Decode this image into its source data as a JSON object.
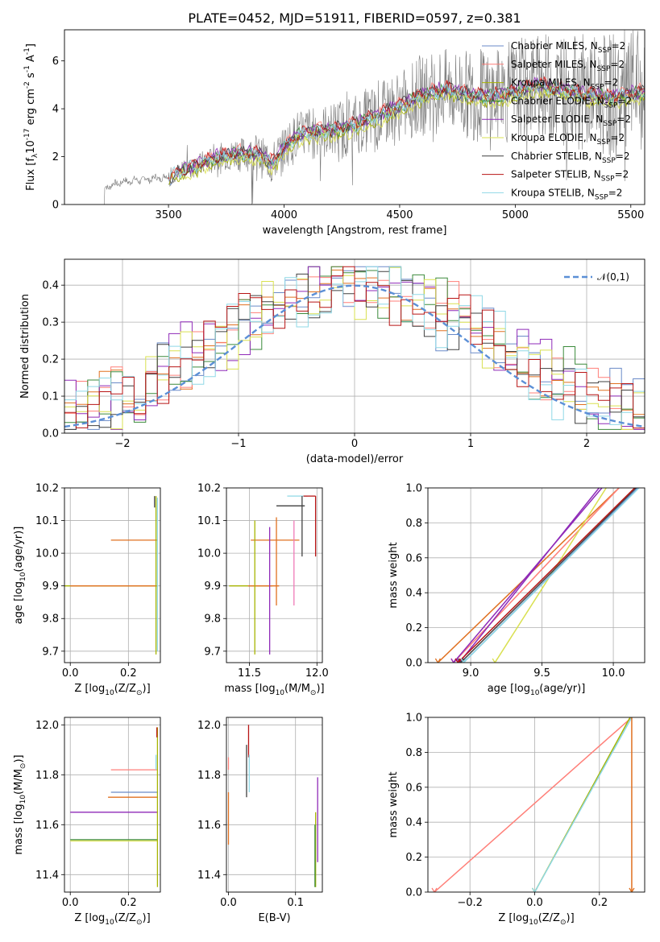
{
  "figure_title": "PLATE=0452, MJD=51911, FIBERID=0597, z=0.381",
  "colors": {
    "Chabrier MILES": "#6a8ac8",
    "Salpeter MILES": "#ff7f78",
    "Kroupa MILES": "#a7b400",
    "Chabrier ELODIE": "#3b8a3b",
    "Salpeter ELODIE": "#8f2ab8",
    "Kroupa ELODIE": "#d9e050",
    "Chabrier STELIB": "#404040",
    "Salpeter STELIB": "#b81414",
    "Kroupa STELIB": "#8fd8e6",
    "gaussian": "#5b8fd6",
    "orange": "#e07020",
    "pink": "#f07ab8",
    "purple": "#8f2ab8"
  },
  "chart_data": [
    {
      "id": "spectrum",
      "type": "line",
      "title": "PLATE=0452, MJD=51911, FIBERID=0597, z=0.381",
      "xlabel": "wavelength [Angstrom, rest frame]",
      "ylabel": "Flux [f$_\\lambda$10$^{-17}$ erg cm$^{-2}$ s$^{-1}$ A$^{-1}$]",
      "xlim": [
        3050,
        5560
      ],
      "ylim": [
        0,
        7.3
      ],
      "xticks": [
        3500,
        4000,
        4500,
        5000,
        5500
      ],
      "yticks": [
        0,
        2,
        4,
        6
      ],
      "legend_position": "top-right",
      "legend": [
        "Chabrier MILES, N$_{SSP}$=2",
        "Salpeter MILES, N$_{SSP}$=2",
        "Kroupa MILES, N$_{SSP}$=2",
        "Chabrier ELODIE, N$_{SSP}$=2",
        "Salpeter ELODIE, N$_{SSP}$=2",
        "Kroupa ELODIE, N$_{SSP}$=2",
        "Chabrier STELIB, N$_{SSP}$=2",
        "Salpeter STELIB, N$_{SSP}$=2",
        "Kroupa STELIB, N$_{SSP}$=2"
      ],
      "continuum": {
        "x": [
          3220,
          3300,
          3400,
          3500,
          3600,
          3700,
          3800,
          3900,
          3950,
          4000,
          4050,
          4100,
          4200,
          4300,
          4400,
          4500,
          4600,
          4700,
          4800,
          4900,
          5000,
          5100,
          5200,
          5300,
          5400,
          5500,
          5560
        ],
        "y": [
          0.7,
          0.95,
          1.05,
          1.15,
          1.55,
          1.95,
          2.15,
          2.05,
          1.7,
          2.35,
          2.85,
          3.0,
          3.1,
          3.3,
          3.7,
          4.1,
          4.6,
          4.8,
          4.6,
          4.5,
          4.7,
          5.0,
          4.8,
          4.6,
          4.5,
          4.6,
          4.7
        ]
      },
      "data_range": [
        3220,
        5560
      ],
      "noise_start": 3500
    },
    {
      "id": "residuals",
      "type": "histogram",
      "xlabel": "(data-model)/error",
      "ylabel": "Normed distribution",
      "xlim": [
        -2.5,
        2.5
      ],
      "ylim": [
        0,
        0.47
      ],
      "xticks": [
        -2,
        -1,
        0,
        1,
        2
      ],
      "yticks": [
        0.0,
        0.1,
        0.2,
        0.3,
        0.4
      ],
      "legend_position": "top-right",
      "legend": "$\\mathcal{N}(0,1)$",
      "bin_width": 0.1
    },
    {
      "id": "age-vs-Z",
      "type": "scatter",
      "xlabel": "Z [log$_{10}$(Z/Z$_\\odot$)]",
      "ylabel": "age  [log$_{10}$(age/yr)]",
      "xlim": [
        -0.02,
        0.31
      ],
      "ylim": [
        9.665,
        10.2
      ],
      "xticks": [
        0.0,
        0.2
      ],
      "yticks": [
        9.7,
        9.8,
        9.9,
        10.0,
        10.1,
        10.2
      ],
      "hbars": [
        {
          "y": 10.04,
          "x0": 0.14,
          "x1": 0.3,
          "color": "orange"
        },
        {
          "y": 9.9,
          "x0": -0.02,
          "x1": 0.3,
          "color": "Kroupa MILES"
        },
        {
          "y": 9.9,
          "x0": 0.0,
          "x1": 0.3,
          "color": "orange"
        }
      ],
      "vbars": [
        {
          "x": 0.295,
          "y0": 9.69,
          "y1": 10.175,
          "color": "Kroupa MILES"
        },
        {
          "x": 0.3,
          "y0": 9.7,
          "y1": 10.17,
          "color": "Kroupa STELIB"
        },
        {
          "x": 0.29,
          "y0": 10.14,
          "y1": 10.175,
          "color": "Chabrier STELIB"
        }
      ]
    },
    {
      "id": "age-vs-mass",
      "type": "scatter",
      "xlabel": "mass [log$_{10}$(M/M$_\\odot$)]",
      "xlim": [
        11.33,
        12.04
      ],
      "ylim": [
        9.665,
        10.2
      ],
      "xticks": [
        11.5,
        12.0
      ],
      "yticks": [
        9.7,
        9.8,
        9.9,
        10.0,
        10.1,
        10.2
      ],
      "hbars": [
        {
          "y": 10.175,
          "x0": 11.78,
          "x1": 11.93,
          "color": "Kroupa STELIB"
        },
        {
          "y": 10.175,
          "x0": 11.9,
          "x1": 11.99,
          "color": "Salpeter STELIB"
        },
        {
          "y": 10.145,
          "x0": 11.7,
          "x1": 11.91,
          "color": "Chabrier STELIB"
        },
        {
          "y": 10.04,
          "x0": 11.51,
          "x1": 11.87,
          "color": "orange"
        },
        {
          "y": 9.9,
          "x0": 11.35,
          "x1": 11.67,
          "color": "Kroupa MILES"
        },
        {
          "y": 9.9,
          "x0": 11.49,
          "x1": 11.72,
          "color": "orange"
        }
      ],
      "vbars": [
        {
          "x": 11.54,
          "y0": 9.69,
          "y1": 10.1,
          "color": "Kroupa MILES"
        },
        {
          "x": 11.65,
          "y0": 9.69,
          "y1": 10.08,
          "color": "purple"
        },
        {
          "x": 11.7,
          "y0": 9.84,
          "y1": 10.11,
          "color": "orange"
        },
        {
          "x": 11.83,
          "y0": 9.84,
          "y1": 10.1,
          "color": "pink"
        },
        {
          "x": 11.89,
          "y0": 9.99,
          "y1": 10.175,
          "color": "Chabrier STELIB"
        },
        {
          "x": 11.99,
          "y0": 9.99,
          "y1": 10.175,
          "color": "Salpeter STELIB"
        }
      ]
    },
    {
      "id": "mass-weight-vs-age",
      "type": "line",
      "xlabel": "age  [log$_{10}$(age/yr)]",
      "ylabel": "mass weight",
      "xlim": [
        8.7,
        10.22
      ],
      "ylim": [
        0,
        1
      ],
      "xticks": [
        9.0,
        9.5,
        10.0
      ],
      "yticks": [
        0.0,
        0.2,
        0.4,
        0.6,
        0.8,
        1.0
      ],
      "series": [
        {
          "color": "orange",
          "x": [
            8.77,
            10.04
          ]
        },
        {
          "color": "Salpeter MILES",
          "x": [
            8.88,
            10.04
          ]
        },
        {
          "color": "purple",
          "x": [
            8.88,
            9.92
          ]
        },
        {
          "color": "Salpeter ELODIE",
          "x": [
            8.92,
            9.9
          ]
        },
        {
          "color": "Kroupa ELODIE",
          "x": [
            9.17,
            9.95
          ]
        },
        {
          "color": "Chabrier STELIB",
          "x": [
            8.93,
            10.16
          ]
        },
        {
          "color": "Salpeter STELIB",
          "x": [
            8.91,
            10.15
          ]
        },
        {
          "color": "Chabrier MILES",
          "x": [
            8.95,
            10.17
          ]
        },
        {
          "color": "Kroupa STELIB",
          "x": [
            8.95,
            10.18
          ]
        }
      ]
    },
    {
      "id": "mass-vs-Z",
      "type": "scatter",
      "xlabel": "Z [log$_{10}$(Z/Z$_\\odot$)]",
      "ylabel": "mass [log$_{10}$(M/M$_\\odot$)]",
      "xlim": [
        -0.02,
        0.31
      ],
      "ylim": [
        11.33,
        12.03
      ],
      "xticks": [
        0.0,
        0.2
      ],
      "yticks": [
        11.4,
        11.6,
        11.8,
        12.0
      ],
      "hbars": [
        {
          "y": 11.82,
          "x0": 0.14,
          "x1": 0.3,
          "color": "Salpeter MILES"
        },
        {
          "y": 11.73,
          "x0": 0.14,
          "x1": 0.3,
          "color": "Chabrier MILES"
        },
        {
          "y": 11.71,
          "x0": 0.13,
          "x1": 0.3,
          "color": "orange"
        },
        {
          "y": 11.65,
          "x0": 0.0,
          "x1": 0.3,
          "color": "purple"
        },
        {
          "y": 11.54,
          "x0": 0.0,
          "x1": 0.3,
          "color": "Chabrier ELODIE"
        },
        {
          "y": 11.535,
          "x0": 0.0,
          "x1": 0.3,
          "color": "Kroupa ELODIE"
        }
      ],
      "vbars": [
        {
          "x": 0.3,
          "y0": 11.35,
          "y1": 11.99,
          "color": "Kroupa MILES"
        },
        {
          "x": 0.295,
          "y0": 11.82,
          "y1": 11.88,
          "color": "Kroupa STELIB"
        },
        {
          "x": 0.298,
          "y0": 11.95,
          "y1": 11.99,
          "color": "Salpeter STELIB"
        }
      ]
    },
    {
      "id": "mass-vs-ebv",
      "type": "scatter",
      "xlabel": "E(B-V)",
      "xlim": [
        -0.003,
        0.14
      ],
      "ylim": [
        11.33,
        12.03
      ],
      "xticks": [
        0.0,
        0.1
      ],
      "yticks": [
        11.4,
        11.6,
        11.8,
        12.0
      ],
      "vbars": [
        {
          "x": 0.0,
          "y0": 11.52,
          "y1": 11.73,
          "color": "orange"
        },
        {
          "x": 0.0,
          "y0": 11.82,
          "y1": 11.87,
          "color": "Salpeter MILES"
        },
        {
          "x": 0.027,
          "y0": 11.71,
          "y1": 11.92,
          "color": "Chabrier STELIB"
        },
        {
          "x": 0.03,
          "y0": 11.87,
          "y1": 12.0,
          "color": "Salpeter STELIB"
        },
        {
          "x": 0.031,
          "y0": 11.73,
          "y1": 11.88,
          "color": "Kroupa STELIB"
        },
        {
          "x": 0.133,
          "y0": 11.45,
          "y1": 11.79,
          "color": "purple"
        },
        {
          "x": 0.13,
          "y0": 11.35,
          "y1": 11.65,
          "color": "Kroupa MILES"
        },
        {
          "x": 0.129,
          "y0": 11.35,
          "y1": 11.6,
          "color": "Chabrier ELODIE"
        }
      ]
    },
    {
      "id": "mass-weight-vs-Z",
      "type": "line",
      "xlabel": "Z [log$_{10}$(Z/Z$_\\odot$)]",
      "ylabel": "mass weight",
      "xlim": [
        -0.33,
        0.34
      ],
      "ylim": [
        0,
        1
      ],
      "xticks": [
        -0.2,
        0.0,
        0.2
      ],
      "yticks": [
        0.0,
        0.2,
        0.4,
        0.6,
        0.8,
        1.0
      ],
      "series": [
        {
          "color": "Salpeter MILES",
          "x": [
            -0.31,
            0.3
          ]
        },
        {
          "color": "Kroupa MILES",
          "x": [
            0.0,
            0.295
          ]
        },
        {
          "color": "Kroupa STELIB",
          "x": [
            0.0,
            0.3
          ]
        },
        {
          "color": "orange",
          "x": [
            0.3,
            0.3
          ]
        }
      ]
    }
  ]
}
